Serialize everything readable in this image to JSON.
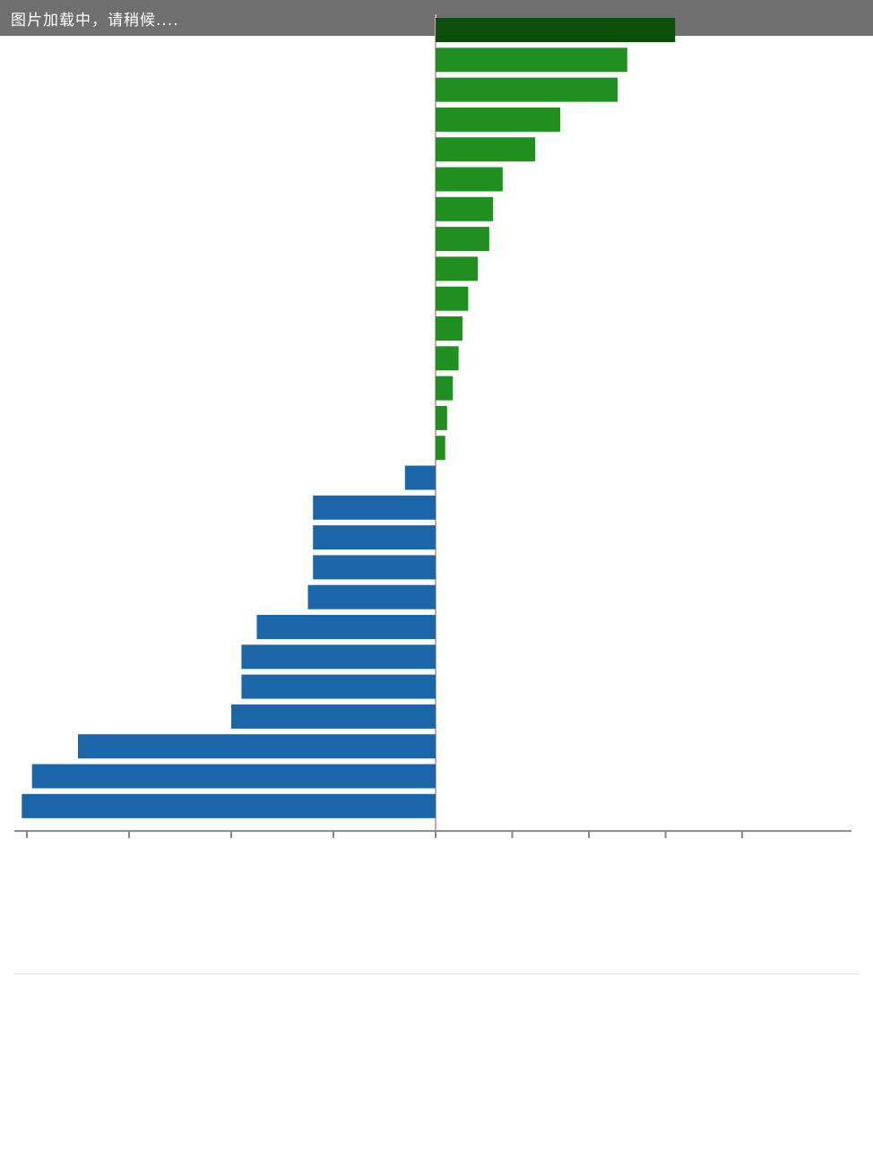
{
  "loading_overlay": {
    "text": "图片加载中，请稍候...."
  },
  "chart_data": {
    "type": "bar",
    "orientation": "horizontal",
    "title": "",
    "xlabel": "",
    "ylabel": "",
    "xlim": [
      -160,
      210
    ],
    "grid": false,
    "legend": "none",
    "categories": [
      "",
      "",
      "",
      "",
      "",
      "",
      "",
      "",
      "",
      "",
      "",
      "",
      "",
      "",
      "",
      "",
      "",
      "",
      "",
      "",
      "",
      "",
      "",
      "",
      "",
      "",
      ""
    ],
    "values": [
      125,
      100,
      95,
      65,
      52,
      35,
      30,
      28,
      22,
      17,
      14,
      12,
      9,
      6,
      5,
      -12,
      -48,
      -48,
      -48,
      -50,
      -70,
      -76,
      -76,
      -80,
      -140,
      -158,
      -162
    ],
    "value_labels": [
      "",
      "",
      "",
      "",
      "",
      "",
      "",
      "",
      "",
      "",
      "",
      "",
      "",
      "",
      "",
      "",
      "",
      "",
      "",
      "",
      "",
      "",
      "",
      "",
      "",
      "",
      ""
    ],
    "x_ticks": [
      -160,
      -120,
      -80,
      -40,
      0,
      40,
      80,
      120,
      160
    ],
    "x_tick_labels": [
      "",
      "",
      "",
      "",
      "",
      "",
      "",
      "",
      ""
    ],
    "colors": {
      "positive": "#1f8f1f",
      "top": "#0b4f0b",
      "negative": "#1a66a8",
      "positive_label": "#3da93d",
      "negative_label": "#4d8fc4"
    }
  },
  "caption": {
    "label": "",
    "text": ""
  }
}
